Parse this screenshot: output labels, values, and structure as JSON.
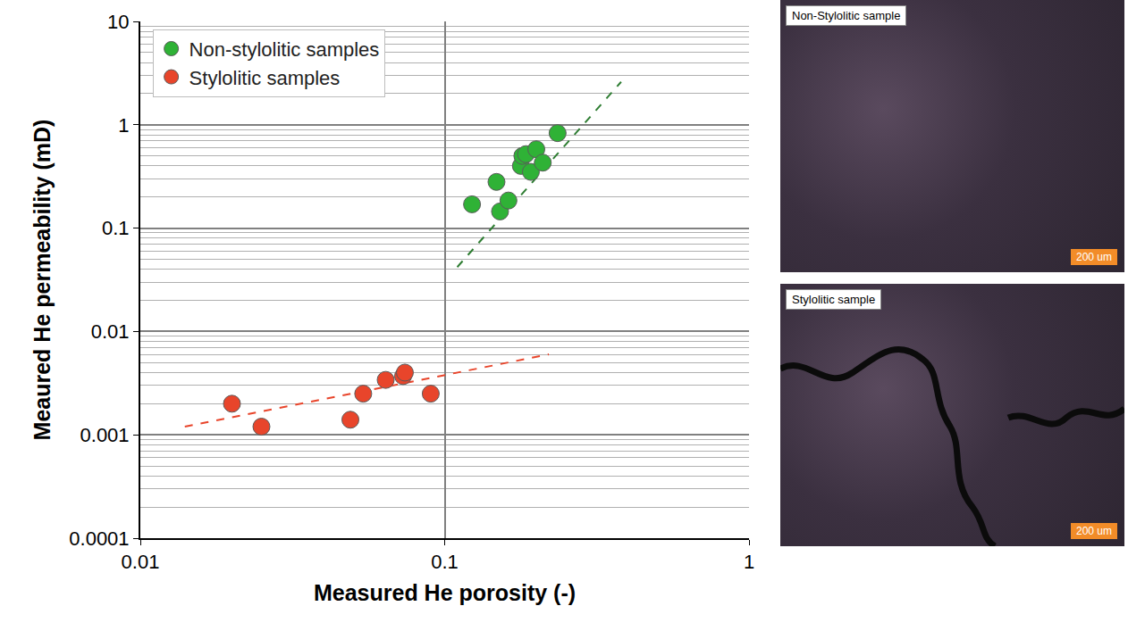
{
  "chart_data": {
    "type": "scatter",
    "x_label": "Measured He porosity (-)",
    "y_label": "Meaured He permeability (mD)",
    "log": true,
    "grid": true,
    "legend": "top-left",
    "xlim": [
      0.01,
      1
    ],
    "ylim": [
      0.0001,
      10
    ],
    "xticks": [
      0.01,
      0.1,
      1
    ],
    "yticks": [
      0.0001,
      0.001,
      0.01,
      0.1,
      1,
      10
    ],
    "series": [
      {
        "name": "Non-stylolitic samples",
        "color": "#2fb236",
        "marker": "circle",
        "x": [
          0.123,
          0.148,
          0.152,
          0.162,
          0.178,
          0.18,
          0.185,
          0.192,
          0.2,
          0.21,
          0.235
        ],
        "values": [
          0.17,
          0.28,
          0.145,
          0.185,
          0.4,
          0.5,
          0.52,
          0.35,
          0.58,
          0.43,
          0.83
        ]
      },
      {
        "name": "Stylolitic samples",
        "color": "#e8452b",
        "marker": "circle",
        "x": [
          0.02,
          0.025,
          0.049,
          0.054,
          0.064,
          0.073,
          0.074,
          0.09
        ],
        "values": [
          0.002,
          0.0012,
          0.0014,
          0.0025,
          0.0034,
          0.0037,
          0.004,
          0.0025
        ]
      }
    ],
    "trend_lines": [
      {
        "color": "#2e7d32",
        "line_style": "dashed",
        "x": [
          0.11,
          0.38
        ],
        "values": [
          0.042,
          2.6
        ]
      },
      {
        "color": "#e8452b",
        "line_style": "dashed",
        "x": [
          0.014,
          0.22
        ],
        "values": [
          0.0012,
          0.006
        ]
      }
    ]
  },
  "panels": [
    {
      "label": "Non-Stylolitic sample",
      "scale_bar": "200 um"
    },
    {
      "label": "Stylolitic sample",
      "scale_bar": "200 um"
    }
  ]
}
